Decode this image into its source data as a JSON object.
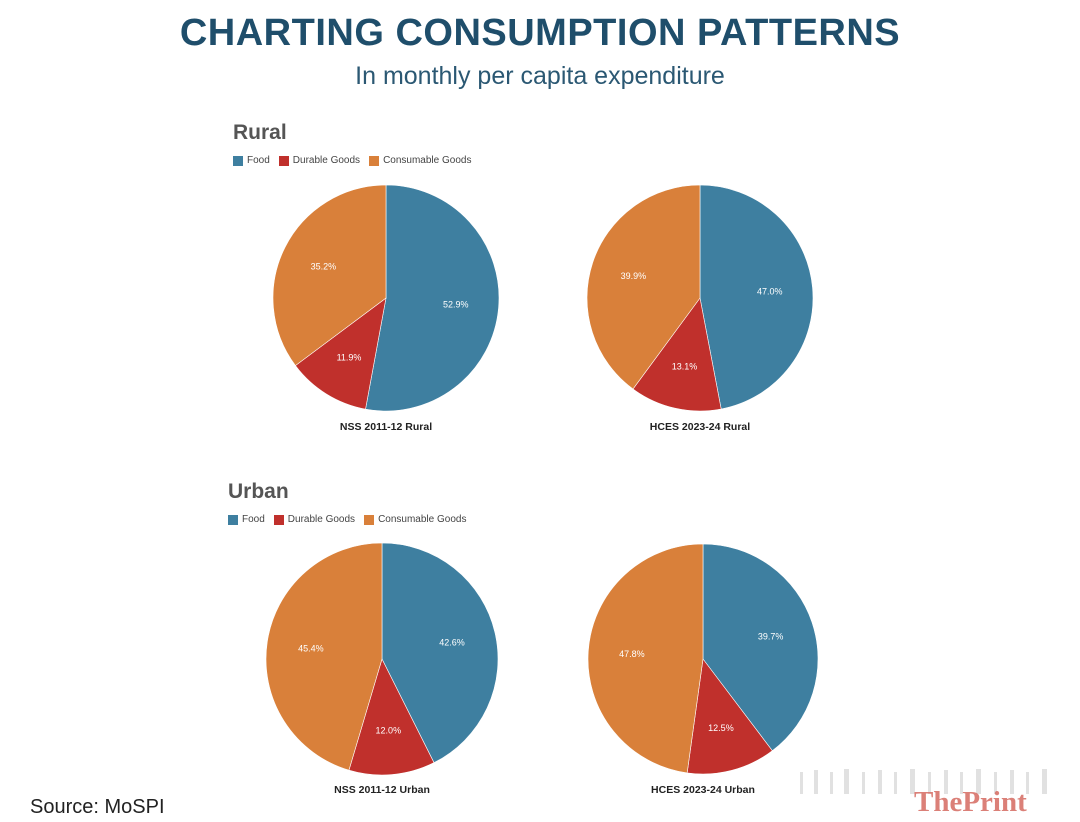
{
  "header": {
    "title": "CHARTING CONSUMPTION PATTERNS",
    "subtitle": "In monthly per capita expenditure"
  },
  "colors": {
    "food": "#3e7fa0",
    "durable": "#c0302c",
    "consumable": "#d9803a",
    "label_text": "#ffffff"
  },
  "sections": [
    {
      "title": "Rural",
      "legend": [
        "Food",
        "Durable Goods",
        "Consumable Goods"
      ]
    },
    {
      "title": "Urban",
      "legend": [
        "Food",
        "Durable Goods",
        "Consumable Goods"
      ]
    }
  ],
  "chart_data": [
    {
      "type": "pie",
      "title": "NSS 2011-12 Rural",
      "categories": [
        "Food",
        "Durable Goods",
        "Consumable Goods"
      ],
      "values": [
        52.9,
        11.9,
        35.2
      ],
      "labels": [
        "52.9%",
        "11.9%",
        "35.2%"
      ]
    },
    {
      "type": "pie",
      "title": "HCES 2023-24 Rural",
      "categories": [
        "Food",
        "Durable Goods",
        "Consumable Goods"
      ],
      "values": [
        47.0,
        13.1,
        39.9
      ],
      "labels": [
        "47.0%",
        "13.1%",
        "39.9%"
      ]
    },
    {
      "type": "pie",
      "title": "NSS 2011-12 Urban",
      "categories": [
        "Food",
        "Durable Goods",
        "Consumable Goods"
      ],
      "values": [
        42.6,
        12.0,
        45.4
      ],
      "labels": [
        "42.6%",
        "12.0%",
        "45.4%"
      ]
    },
    {
      "type": "pie",
      "title": "HCES 2023-24 Urban",
      "categories": [
        "Food",
        "Durable Goods",
        "Consumable Goods"
      ],
      "values": [
        39.7,
        12.5,
        47.8
      ],
      "labels": [
        "39.7%",
        "12.5%",
        "47.8%"
      ]
    }
  ],
  "footer": {
    "source": "Source: MoSPI",
    "brand": "ThePrint"
  }
}
